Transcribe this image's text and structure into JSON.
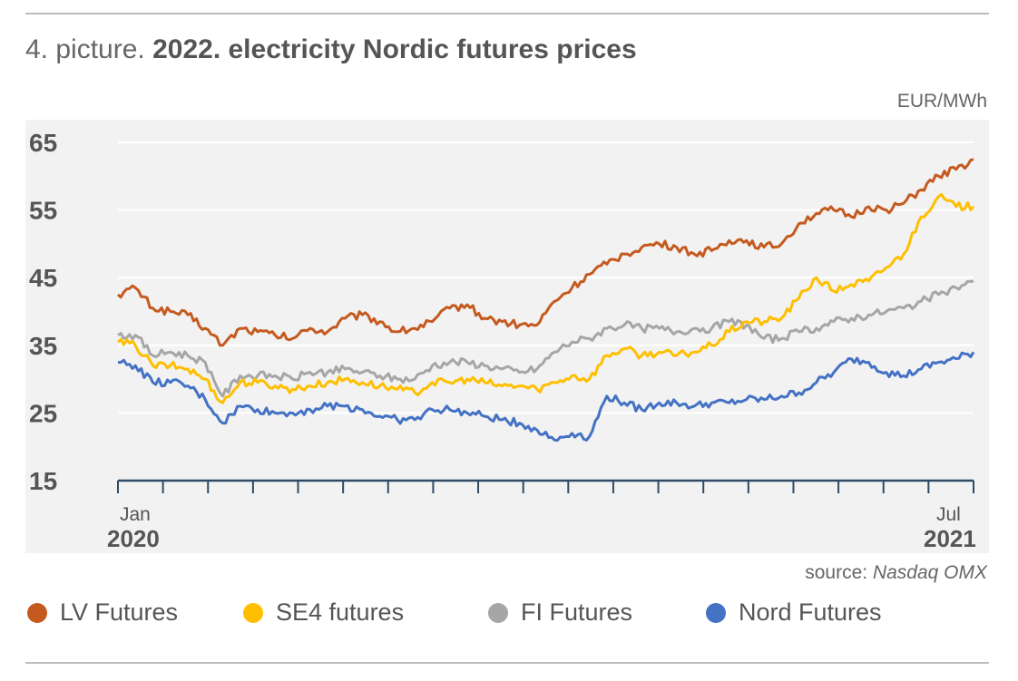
{
  "header": {
    "title_prefix": "4. picture.",
    "title_main": "2022. electricity Nordic futures prices",
    "unit": "EUR/MWh"
  },
  "footer": {
    "source_label": "source:",
    "source_name": "Nasdaq OMX"
  },
  "colors": {
    "plot_bg": "#f2f2f2",
    "grid": "#ffffff",
    "axis": "#2e4a66",
    "lv": "#c55a1f",
    "se4": "#ffbf00",
    "fi": "#a6a6a6",
    "nord": "#4472c4"
  },
  "chart_data": {
    "type": "line",
    "title": "2022. electricity Nordic futures prices",
    "ylabel": "EUR/MWh",
    "ylim": [
      15,
      65
    ],
    "yticks": [
      "65",
      "55",
      "45",
      "35",
      "25",
      "15"
    ],
    "x_start_labels": [
      "Jan",
      "2020"
    ],
    "x_end_labels": [
      "Jul",
      "2021"
    ],
    "x_period_count": 19,
    "legend_position": "bottom",
    "grid": true,
    "series": [
      {
        "name": "LV Futures",
        "color": "#c55a1f",
        "values": [
          42.5,
          43.5,
          40.5,
          40.0,
          39.5,
          37.5,
          35.0,
          37.5,
          37.0,
          36.5,
          36.0,
          37.5,
          37.0,
          39.0,
          39.5,
          38.5,
          37.0,
          37.5,
          38.5,
          40.5,
          41.0,
          39.0,
          38.5,
          38.0,
          38.0,
          41.5,
          43.5,
          45.5,
          47.0,
          48.5,
          49.5,
          50.0,
          49.5,
          48.5,
          49.0,
          50.5,
          50.5,
          49.5,
          50.0,
          53.0,
          54.5,
          55.0,
          54.0,
          55.5,
          55.0,
          56.0,
          58.0,
          60.0,
          61.0,
          62.5
        ]
      },
      {
        "name": "SE4 futures",
        "color": "#ffbf00",
        "values": [
          35.5,
          35.0,
          32.0,
          32.0,
          31.5,
          30.0,
          26.5,
          29.5,
          29.5,
          29.0,
          28.5,
          29.0,
          29.5,
          30.0,
          29.5,
          29.0,
          28.5,
          28.0,
          29.5,
          29.5,
          30.0,
          29.5,
          29.0,
          29.0,
          28.5,
          29.5,
          30.5,
          30.0,
          33.5,
          34.5,
          33.5,
          34.0,
          33.5,
          34.0,
          35.0,
          37.0,
          38.5,
          38.5,
          39.0,
          42.0,
          45.0,
          43.0,
          44.0,
          44.5,
          46.5,
          48.5,
          54.0,
          57.0,
          55.5,
          55.5
        ]
      },
      {
        "name": "FI Futures",
        "color": "#a6a6a6",
        "values": [
          36.5,
          36.5,
          33.5,
          34.0,
          33.5,
          32.5,
          27.5,
          30.5,
          30.5,
          30.5,
          30.0,
          31.0,
          31.0,
          31.5,
          31.0,
          30.5,
          30.0,
          30.0,
          32.0,
          32.5,
          32.5,
          32.0,
          31.5,
          31.0,
          31.5,
          34.0,
          35.5,
          36.0,
          37.5,
          38.0,
          37.5,
          37.5,
          37.0,
          37.5,
          37.5,
          38.5,
          38.0,
          36.0,
          36.0,
          37.0,
          37.5,
          38.5,
          39.0,
          39.5,
          40.0,
          40.5,
          41.5,
          42.5,
          43.5,
          44.5
        ]
      },
      {
        "name": "Nord Futures",
        "color": "#4472c4",
        "values": [
          32.5,
          32.0,
          29.5,
          29.5,
          29.0,
          27.0,
          23.5,
          26.0,
          25.5,
          25.0,
          25.0,
          25.5,
          26.0,
          26.0,
          25.5,
          24.5,
          24.0,
          24.0,
          25.5,
          25.5,
          25.0,
          24.5,
          24.0,
          23.5,
          22.5,
          21.0,
          22.0,
          21.5,
          27.5,
          26.5,
          25.5,
          26.5,
          26.5,
          26.0,
          26.5,
          26.5,
          27.0,
          27.0,
          27.5,
          28.0,
          29.5,
          31.0,
          33.0,
          32.5,
          31.0,
          30.5,
          31.5,
          32.5,
          33.0,
          34.0
        ]
      }
    ]
  }
}
